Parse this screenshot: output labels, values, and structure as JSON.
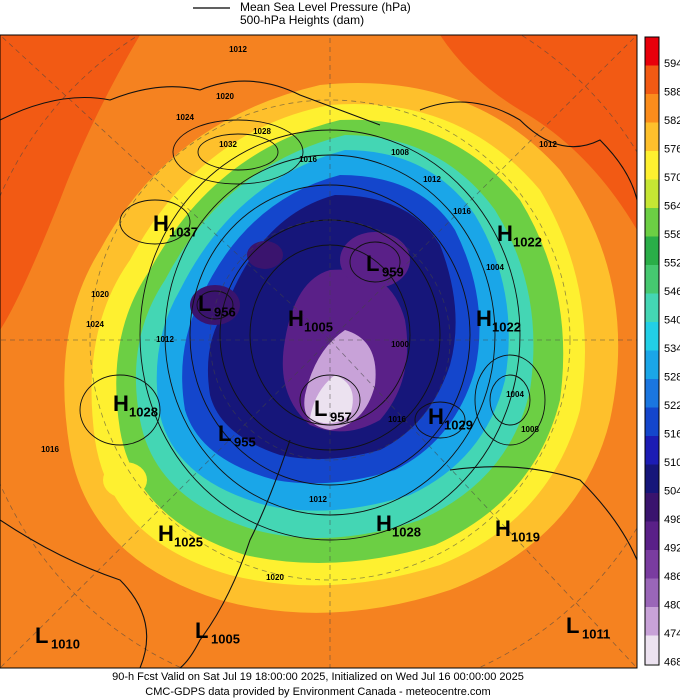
{
  "legend": {
    "line_label": "Mean Sea Level Pressure (hPa)",
    "fill_label": "500-hPa Heights (dam)"
  },
  "colorbar": [
    {
      "label": "594",
      "color": "#e8000b"
    },
    {
      "label": "588",
      "color": "#f25a14"
    },
    {
      "label": "582",
      "color": "#fb8c1c"
    },
    {
      "label": "576",
      "color": "#fec02c"
    },
    {
      "label": "570",
      "color": "#fef030"
    },
    {
      "label": "564",
      "color": "#c6e634"
    },
    {
      "label": "558",
      "color": "#6ccf44"
    },
    {
      "label": "552",
      "color": "#2aae48"
    },
    {
      "label": "546",
      "color": "#46c870"
    },
    {
      "label": "540",
      "color": "#44d6b4"
    },
    {
      "label": "534",
      "color": "#22cfe6"
    },
    {
      "label": "528",
      "color": "#1aa6e8"
    },
    {
      "label": "522",
      "color": "#1a76e0"
    },
    {
      "label": "516",
      "color": "#1446cc"
    },
    {
      "label": "510",
      "color": "#1c1cb4"
    },
    {
      "label": "504",
      "color": "#16167a"
    },
    {
      "label": "498",
      "color": "#3a146e"
    },
    {
      "label": "492",
      "color": "#5a2088"
    },
    {
      "label": "486",
      "color": "#7a3ca0"
    },
    {
      "label": "480",
      "color": "#9a66b8"
    },
    {
      "label": "474",
      "color": "#c8a2d8"
    },
    {
      "label": "468",
      "color": "#ece2f0"
    }
  ],
  "pressure_centers": [
    {
      "type": "H",
      "value": "1037"
    },
    {
      "type": "H",
      "value": "1022"
    },
    {
      "type": "L",
      "value": "959"
    },
    {
      "type": "L",
      "value": "956"
    },
    {
      "type": "H",
      "value": "1005"
    },
    {
      "type": "H",
      "value": "1022"
    },
    {
      "type": "H",
      "value": "1028"
    },
    {
      "type": "H",
      "value": "1029"
    },
    {
      "type": "L",
      "value": "957"
    },
    {
      "type": "L",
      "value": "955"
    },
    {
      "type": "H",
      "value": "1025"
    },
    {
      "type": "H",
      "value": "1028"
    },
    {
      "type": "H",
      "value": "1019"
    },
    {
      "type": "L",
      "value": "1010"
    },
    {
      "type": "L",
      "value": "1005"
    },
    {
      "type": "L",
      "value": "1011"
    }
  ],
  "contour_labels": [
    "1012",
    "1020",
    "1024",
    "1032",
    "1028",
    "1016",
    "1008",
    "1012",
    "1016",
    "1004",
    "1012",
    "1020",
    "1024",
    "1012",
    "1016",
    "1020",
    "1012",
    "1004",
    "1008",
    "1016",
    "1000"
  ],
  "footer": {
    "valid": "90-h Fcst Valid on Sat Jul 19 18:00:00 2025, Initialized on Wed Jul 16 00:00:00 2025",
    "credit": "CMC-GDPS data provided by Environment Canada - meteocentre.com"
  }
}
